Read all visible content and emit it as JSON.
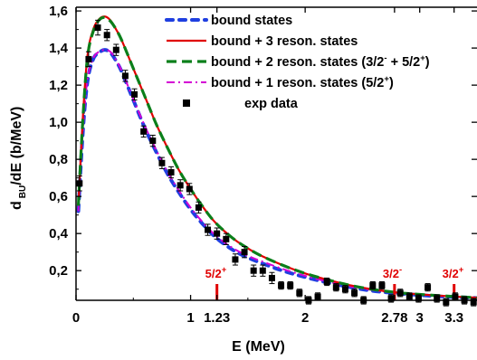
{
  "chart_data": {
    "type": "line",
    "xlabel": "E (MeV)",
    "ylabel_main": "d",
    "ylabel_sub": "BU",
    "ylabel_rest": "/dE (b/MeV)",
    "xlim": [
      0,
      3.5
    ],
    "ylim": [
      0.04,
      1.62
    ],
    "x_ticks": [
      {
        "value": 0,
        "label": "0"
      },
      {
        "value": 1,
        "label": "1"
      },
      {
        "value": 1.23,
        "label": "1.23"
      },
      {
        "value": 2,
        "label": "2"
      },
      {
        "value": 2.78,
        "label": "2.78"
      },
      {
        "value": 3,
        "label": "3"
      },
      {
        "value": 3.3,
        "label": "3.3"
      }
    ],
    "y_ticks": [
      {
        "value": 0.2,
        "label": "0,2"
      },
      {
        "value": 0.4,
        "label": "0,4"
      },
      {
        "value": 0.6,
        "label": "0,6"
      },
      {
        "value": 0.8,
        "label": "0,8"
      },
      {
        "value": 1.0,
        "label": "1,0"
      },
      {
        "value": 1.2,
        "label": "1,2"
      },
      {
        "value": 1.4,
        "label": "1,4"
      },
      {
        "value": 1.6,
        "label": "1,6"
      }
    ],
    "grid": false,
    "legend_position": "top-right",
    "series": [
      {
        "name": "bound states",
        "style": "dashed",
        "color": "#1f3fe0",
        "x": [
          0.02,
          0.06,
          0.1,
          0.15,
          0.2,
          0.25,
          0.3,
          0.35,
          0.4,
          0.5,
          0.6,
          0.7,
          0.8,
          0.9,
          1.0,
          1.1,
          1.2,
          1.3,
          1.4,
          1.5,
          1.6,
          1.8,
          2.0,
          2.2,
          2.4,
          2.6,
          2.8,
          3.0,
          3.2,
          3.4,
          3.5
        ],
        "y": [
          0.52,
          0.95,
          1.22,
          1.34,
          1.375,
          1.39,
          1.375,
          1.33,
          1.27,
          1.12,
          0.97,
          0.84,
          0.72,
          0.62,
          0.53,
          0.455,
          0.39,
          0.34,
          0.3,
          0.27,
          0.245,
          0.2,
          0.165,
          0.135,
          0.11,
          0.09,
          0.078,
          0.068,
          0.06,
          0.055,
          0.052
        ]
      },
      {
        "name": "bound + 3 reson. states",
        "style": "solid",
        "color": "#e00000",
        "x": [
          0.02,
          0.06,
          0.1,
          0.15,
          0.2,
          0.25,
          0.3,
          0.35,
          0.4,
          0.5,
          0.6,
          0.7,
          0.8,
          0.9,
          1.0,
          1.1,
          1.2,
          1.3,
          1.4,
          1.5,
          1.6,
          1.8,
          2.0,
          2.2,
          2.4,
          2.6,
          2.8,
          3.0,
          3.2,
          3.4,
          3.5
        ],
        "y": [
          0.55,
          1.03,
          1.36,
          1.5,
          1.555,
          1.57,
          1.55,
          1.5,
          1.44,
          1.29,
          1.14,
          0.99,
          0.86,
          0.74,
          0.64,
          0.55,
          0.47,
          0.41,
          0.36,
          0.32,
          0.285,
          0.23,
          0.185,
          0.15,
          0.12,
          0.098,
          0.082,
          0.072,
          0.064,
          0.057,
          0.054
        ]
      },
      {
        "name": "bound + 2 reson. states (3/2⁻ + 5/2⁺)",
        "legend_parts": [
          "bound + 2 reson. states (3/2",
          "-",
          " + 5/2",
          "+",
          ")"
        ],
        "style": "dashed",
        "color": "#0b7f1a",
        "x": [
          0.02,
          0.06,
          0.1,
          0.15,
          0.2,
          0.25,
          0.3,
          0.35,
          0.4,
          0.5,
          0.6,
          0.7,
          0.8,
          0.9,
          1.0,
          1.1,
          1.2,
          1.3,
          1.4,
          1.5,
          1.6,
          1.8,
          2.0,
          2.2,
          2.4,
          2.6,
          2.8,
          3.0,
          3.2,
          3.4,
          3.5
        ],
        "y": [
          0.55,
          1.02,
          1.35,
          1.49,
          1.55,
          1.565,
          1.545,
          1.5,
          1.44,
          1.29,
          1.14,
          0.99,
          0.86,
          0.74,
          0.64,
          0.55,
          0.47,
          0.41,
          0.36,
          0.32,
          0.285,
          0.23,
          0.185,
          0.15,
          0.12,
          0.098,
          0.082,
          0.072,
          0.064,
          0.057,
          0.054
        ]
      },
      {
        "name": "bound + 1 reson. states (5/2⁺)",
        "legend_parts": [
          "bound + 1 reson. states (5/2",
          "+",
          ")"
        ],
        "style": "dashdot",
        "color": "#d400d4",
        "x": [
          0.02,
          0.06,
          0.1,
          0.15,
          0.2,
          0.25,
          0.3,
          0.35,
          0.4,
          0.5,
          0.6,
          0.7,
          0.8,
          0.9,
          1.0,
          1.1,
          1.2,
          1.3,
          1.4,
          1.5,
          1.6,
          1.8,
          2.0,
          2.2,
          2.4,
          2.6,
          2.8,
          3.0,
          3.2,
          3.4,
          3.5
        ],
        "y": [
          0.52,
          0.96,
          1.23,
          1.345,
          1.38,
          1.39,
          1.38,
          1.335,
          1.275,
          1.125,
          0.98,
          0.85,
          0.73,
          0.63,
          0.54,
          0.465,
          0.4,
          0.35,
          0.31,
          0.28,
          0.255,
          0.21,
          0.172,
          0.14,
          0.114,
          0.094,
          0.08,
          0.07,
          0.062,
          0.056,
          0.053
        ]
      },
      {
        "name": "exp data",
        "style": "markers",
        "color": "#000000",
        "x": [
          0.03,
          0.11,
          0.19,
          0.27,
          0.35,
          0.43,
          0.51,
          0.59,
          0.67,
          0.75,
          0.83,
          0.91,
          0.99,
          1.07,
          1.15,
          1.23,
          1.31,
          1.39,
          1.47,
          1.55,
          1.63,
          1.71,
          1.79,
          1.87,
          1.95,
          2.03,
          2.11,
          2.19,
          2.27,
          2.35,
          2.43,
          2.51,
          2.59,
          2.67,
          2.75,
          2.83,
          2.91,
          2.99,
          3.07,
          3.15,
          3.23,
          3.31,
          3.39,
          3.47
        ],
        "y": [
          0.67,
          1.34,
          1.51,
          1.47,
          1.39,
          1.25,
          1.15,
          0.95,
          0.9,
          0.78,
          0.73,
          0.66,
          0.64,
          0.54,
          0.42,
          0.4,
          0.37,
          0.26,
          0.3,
          0.2,
          0.2,
          0.16,
          0.12,
          0.12,
          0.08,
          0.04,
          0.06,
          0.14,
          0.11,
          0.1,
          0.08,
          0.04,
          0.12,
          0.12,
          0.05,
          0.08,
          0.06,
          0.05,
          0.11,
          0.05,
          0.03,
          0.06,
          0.04,
          0.03
        ],
        "err": [
          0.04,
          0.04,
          0.04,
          0.03,
          0.03,
          0.03,
          0.03,
          0.03,
          0.03,
          0.03,
          0.03,
          0.03,
          0.03,
          0.03,
          0.03,
          0.03,
          0.03,
          0.03,
          0.03,
          0.03,
          0.03,
          0.03,
          0.02,
          0.02,
          0.02,
          0.02,
          0.02,
          0.02,
          0.02,
          0.02,
          0.02,
          0.02,
          0.02,
          0.02,
          0.02,
          0.02,
          0.02,
          0.02,
          0.02,
          0.02,
          0.02,
          0.02,
          0.02,
          0.02
        ]
      }
    ],
    "resonance_markers": [
      {
        "x": 1.23,
        "label": "5/2",
        "sup": "+"
      },
      {
        "x": 2.78,
        "label": "3/2",
        "sup": "-"
      },
      {
        "x": 3.3,
        "label": "3/2",
        "sup": "+"
      }
    ]
  }
}
